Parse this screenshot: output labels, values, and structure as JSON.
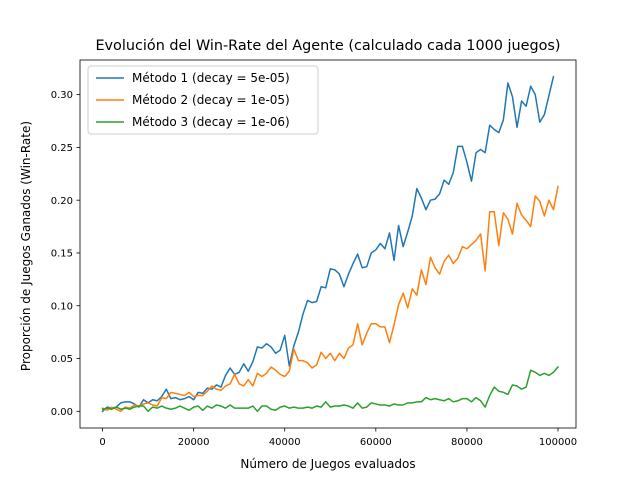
{
  "chart_data": {
    "type": "line",
    "title": "Evolución del Win-Rate del Agente (calculado cada 1000 juegos)",
    "xlabel": "Número de Juegos evaluados",
    "ylabel": "Proporción de Juegos Ganados (Win-Rate)",
    "xlim": [
      -4950,
      103950
    ],
    "ylim": [
      -0.0158,
      0.3328
    ],
    "xticks": [
      0,
      20000,
      40000,
      60000,
      80000,
      100000
    ],
    "xtick_labels": [
      "0",
      "20000",
      "40000",
      "60000",
      "80000",
      "100000"
    ],
    "yticks": [
      0.0,
      0.05,
      0.1,
      0.15,
      0.2,
      0.25,
      0.3
    ],
    "ytick_labels": [
      "0.00",
      "0.05",
      "0.10",
      "0.15",
      "0.20",
      "0.25",
      "0.30"
    ],
    "grid": false,
    "legend_position": "top-left",
    "x_start": 0,
    "x_step": 1000,
    "series": [
      {
        "name": "Método 1 (decay = 5e-05)",
        "color": "#1f77b4",
        "values": [
          0.0,
          0.004,
          0.003,
          0.004,
          0.008,
          0.009,
          0.009,
          0.007,
          0.004,
          0.011,
          0.008,
          0.011,
          0.01,
          0.014,
          0.021,
          0.012,
          0.013,
          0.011,
          0.012,
          0.014,
          0.011,
          0.018,
          0.017,
          0.022,
          0.021,
          0.025,
          0.023,
          0.034,
          0.041,
          0.035,
          0.037,
          0.045,
          0.038,
          0.047,
          0.061,
          0.06,
          0.064,
          0.061,
          0.055,
          0.058,
          0.072,
          0.043,
          0.062,
          0.075,
          0.092,
          0.105,
          0.103,
          0.104,
          0.118,
          0.117,
          0.135,
          0.134,
          0.13,
          0.118,
          0.13,
          0.14,
          0.149,
          0.136,
          0.137,
          0.15,
          0.153,
          0.159,
          0.154,
          0.169,
          0.143,
          0.176,
          0.156,
          0.17,
          0.185,
          0.211,
          0.202,
          0.191,
          0.2,
          0.201,
          0.206,
          0.219,
          0.215,
          0.226,
          0.251,
          0.251,
          0.236,
          0.218,
          0.245,
          0.248,
          0.245,
          0.271,
          0.267,
          0.264,
          0.276,
          0.311,
          0.298,
          0.269,
          0.294,
          0.289,
          0.308,
          0.3,
          0.274,
          0.281,
          0.299,
          0.317
        ]
      },
      {
        "name": "Método 2 (decay = 1e-05)",
        "color": "#ff7f0e",
        "values": [
          0.003,
          0.001,
          0.004,
          0.002,
          0.0,
          0.004,
          0.003,
          0.006,
          0.005,
          0.007,
          0.008,
          0.006,
          0.005,
          0.013,
          0.012,
          0.018,
          0.017,
          0.016,
          0.015,
          0.018,
          0.014,
          0.015,
          0.015,
          0.019,
          0.024,
          0.021,
          0.02,
          0.024,
          0.026,
          0.035,
          0.026,
          0.024,
          0.03,
          0.024,
          0.036,
          0.033,
          0.036,
          0.042,
          0.039,
          0.035,
          0.033,
          0.038,
          0.059,
          0.048,
          0.048,
          0.046,
          0.041,
          0.044,
          0.056,
          0.05,
          0.055,
          0.048,
          0.055,
          0.05,
          0.06,
          0.063,
          0.083,
          0.063,
          0.074,
          0.083,
          0.083,
          0.08,
          0.08,
          0.065,
          0.082,
          0.101,
          0.112,
          0.098,
          0.116,
          0.11,
          0.134,
          0.12,
          0.146,
          0.136,
          0.13,
          0.142,
          0.148,
          0.14,
          0.145,
          0.156,
          0.154,
          0.158,
          0.162,
          0.168,
          0.133,
          0.189,
          0.189,
          0.157,
          0.188,
          0.182,
          0.168,
          0.197,
          0.186,
          0.181,
          0.175,
          0.204,
          0.199,
          0.185,
          0.2,
          0.191,
          0.213
        ]
      },
      {
        "name": "Método 3 (decay = 1e-06)",
        "color": "#2ca02c",
        "values": [
          0.002,
          0.003,
          0.002,
          0.004,
          0.002,
          0.003,
          0.002,
          0.004,
          0.005,
          0.005,
          0.0,
          0.004,
          0.003,
          0.005,
          0.003,
          0.002,
          0.003,
          0.005,
          0.003,
          0.001,
          0.004,
          0.005,
          0.001,
          0.005,
          0.003,
          0.006,
          0.005,
          0.003,
          0.006,
          0.003,
          0.003,
          0.003,
          0.003,
          0.005,
          0.0,
          0.005,
          0.005,
          0.002,
          0.001,
          0.004,
          0.005,
          0.003,
          0.004,
          0.003,
          0.003,
          0.004,
          0.003,
          0.005,
          0.004,
          0.009,
          0.004,
          0.005,
          0.005,
          0.006,
          0.005,
          0.003,
          0.008,
          0.003,
          0.004,
          0.008,
          0.007,
          0.006,
          0.006,
          0.005,
          0.007,
          0.006,
          0.006,
          0.008,
          0.008,
          0.009,
          0.009,
          0.013,
          0.011,
          0.012,
          0.011,
          0.01,
          0.012,
          0.009,
          0.01,
          0.012,
          0.012,
          0.009,
          0.013,
          0.01,
          0.004,
          0.015,
          0.023,
          0.019,
          0.018,
          0.016,
          0.025,
          0.024,
          0.021,
          0.023,
          0.039,
          0.037,
          0.034,
          0.036,
          0.034,
          0.037,
          0.042
        ]
      }
    ]
  }
}
